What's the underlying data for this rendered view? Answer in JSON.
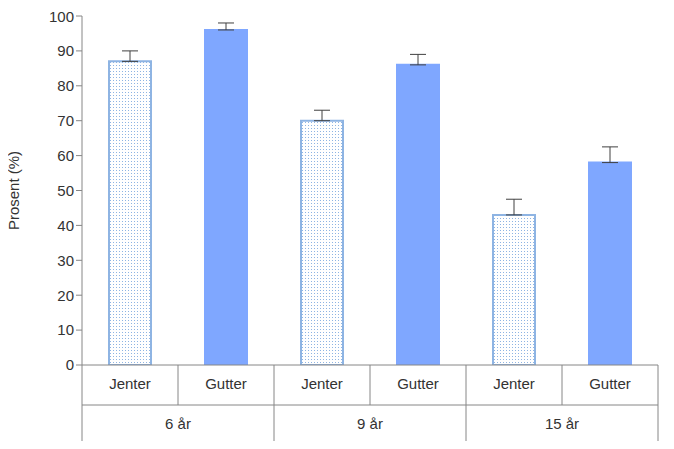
{
  "chart_data": {
    "type": "bar",
    "categories": [
      "6 år",
      "9 år",
      "15 år"
    ],
    "series": [
      {
        "name": "Jenter",
        "color": "#8eb4e3",
        "values": [
          87,
          70,
          43
        ],
        "errors": [
          3,
          3,
          4.5
        ]
      },
      {
        "name": "Gutter",
        "color": "#7fa7ff",
        "values": [
          96,
          86,
          58
        ],
        "errors": [
          2,
          3,
          4.5
        ]
      }
    ],
    "y_label": "Prosent (%)",
    "ylim": [
      0,
      100
    ],
    "yticks": [
      0,
      10,
      20,
      30,
      40,
      50,
      60,
      70,
      80,
      90,
      100
    ],
    "grid": false
  }
}
